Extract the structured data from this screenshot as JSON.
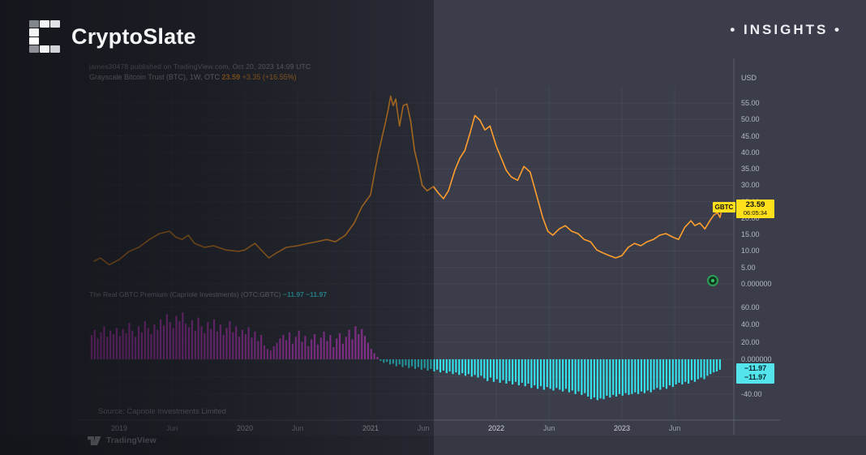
{
  "brand": {
    "name": "CryptoSlate",
    "tagline": "• INSIGHTS •"
  },
  "chart_header": {
    "attribution": "james30478 published on TradingView.com, Oct 20, 2023 14:09 UTC",
    "symbol_title": "Grayscale Bitcoin Trust (BTC), 1W, OTC",
    "last_price": "23.59",
    "change": "+3.35 (+16.55%)"
  },
  "price_scale": {
    "currency_label": "USD",
    "symbol_badge": "GBTC",
    "price_badge": "23.59",
    "countdown": "06:05:34"
  },
  "premium_pane": {
    "title": "The Real GBTC Premium (Capriole Investments) (OTC:GBTC)",
    "value_1": "−11.97",
    "value_2": "−11.97",
    "badge_line_1": "−11.97",
    "badge_line_2": "−11.97",
    "source": "Source: Capriole Investments Limited"
  },
  "footer": {
    "attribution": "TradingView"
  },
  "colors": {
    "background": "#3b3e4a",
    "price_line": "#ff9e2c",
    "premium_positive": "#d94be0",
    "premium_negative": "#35e2ec",
    "price_badge_bg": "#ffe01a",
    "premium_badge_bg": "#54e4ec",
    "axis_text": "#b6bac4"
  },
  "time_axis": {
    "ticks": [
      {
        "year": 2019.0,
        "label": "2019",
        "major": true
      },
      {
        "year": 2019.42,
        "label": "Jun",
        "major": false
      },
      {
        "year": 2020.0,
        "label": "2020",
        "major": true
      },
      {
        "year": 2020.42,
        "label": "Jun",
        "major": false
      },
      {
        "year": 2021.0,
        "label": "2021",
        "major": true
      },
      {
        "year": 2021.42,
        "label": "Jun",
        "major": false
      },
      {
        "year": 2022.0,
        "label": "2022",
        "major": true
      },
      {
        "year": 2022.42,
        "label": "Jun",
        "major": false
      },
      {
        "year": 2023.0,
        "label": "2023",
        "major": true
      },
      {
        "year": 2023.42,
        "label": "Jun",
        "major": false
      }
    ]
  },
  "chart_data": [
    {
      "type": "line",
      "title": "Grayscale Bitcoin Trust (BTC), 1W, OTC — price in USD",
      "color": "#ff9e2c",
      "ylim": [
        0,
        60
      ],
      "legend_position": "top-left",
      "grid": true,
      "y_ticks": [
        {
          "value": 55,
          "label": "55.00"
        },
        {
          "value": 50,
          "label": "50.00"
        },
        {
          "value": 45,
          "label": "45.00"
        },
        {
          "value": 40,
          "label": "40.00"
        },
        {
          "value": 35,
          "label": "35.00"
        },
        {
          "value": 30,
          "label": "30.00"
        },
        {
          "value": 25,
          "label": "25.00"
        },
        {
          "value": 20,
          "label": "20.00"
        },
        {
          "value": 15,
          "label": "15.00"
        },
        {
          "value": 10,
          "label": "10.00"
        },
        {
          "value": 5,
          "label": "5.00"
        },
        {
          "value": 0,
          "label": "0.000000"
        }
      ],
      "x": [
        2018.8,
        2018.85,
        2018.92,
        2019.0,
        2019.08,
        2019.16,
        2019.24,
        2019.32,
        2019.4,
        2019.45,
        2019.5,
        2019.55,
        2019.6,
        2019.68,
        2019.75,
        2019.85,
        2019.95,
        2020.0,
        2020.08,
        2020.19,
        2020.25,
        2020.33,
        2020.42,
        2020.5,
        2020.57,
        2020.65,
        2020.72,
        2020.8,
        2020.87,
        2020.93,
        2021.0,
        2021.03,
        2021.06,
        2021.09,
        2021.12,
        2021.14,
        2021.16,
        2021.18,
        2021.2,
        2021.23,
        2021.26,
        2021.29,
        2021.32,
        2021.35,
        2021.38,
        2021.41,
        2021.45,
        2021.5,
        2021.54,
        2021.58,
        2021.62,
        2021.67,
        2021.71,
        2021.75,
        2021.79,
        2021.83,
        2021.87,
        2021.91,
        2021.95,
        2022.0,
        2022.04,
        2022.08,
        2022.12,
        2022.17,
        2022.22,
        2022.27,
        2022.32,
        2022.37,
        2022.41,
        2022.45,
        2022.5,
        2022.55,
        2022.6,
        2022.65,
        2022.7,
        2022.75,
        2022.8,
        2022.85,
        2022.9,
        2022.95,
        2023.0,
        2023.05,
        2023.1,
        2023.15,
        2023.2,
        2023.25,
        2023.3,
        2023.35,
        2023.4,
        2023.45,
        2023.5,
        2023.55,
        2023.58,
        2023.62,
        2023.66,
        2023.7,
        2023.73,
        2023.76,
        2023.78,
        2023.8
      ],
      "values": [
        6.9,
        7.9,
        5.8,
        7.4,
        9.9,
        11.2,
        13.5,
        15.3,
        16.0,
        14.2,
        13.5,
        14.8,
        12.3,
        11.1,
        11.6,
        10.3,
        9.9,
        10.3,
        12.3,
        7.9,
        9.4,
        11.1,
        11.6,
        12.3,
        12.8,
        13.5,
        12.8,
        14.8,
        18.5,
        23.4,
        27.1,
        33.3,
        39.4,
        44.3,
        49.3,
        53.0,
        57.1,
        54.2,
        56.2,
        48.0,
        54.2,
        54.7,
        49.3,
        40.6,
        35.7,
        30.0,
        28.3,
        29.6,
        27.6,
        25.9,
        28.3,
        34.5,
        38.2,
        40.6,
        45.6,
        51.2,
        49.8,
        46.8,
        48.0,
        41.9,
        38.2,
        34.5,
        32.5,
        31.5,
        35.7,
        34.0,
        27.1,
        20.2,
        16.0,
        14.8,
        16.7,
        17.7,
        16.0,
        15.3,
        13.5,
        12.8,
        10.3,
        9.4,
        8.6,
        7.9,
        8.6,
        11.1,
        12.3,
        11.6,
        12.8,
        13.5,
        14.8,
        15.3,
        14.3,
        13.5,
        17.2,
        19.2,
        17.7,
        18.5,
        16.7,
        19.2,
        20.9,
        21.7,
        20.2,
        23.59
      ],
      "last_value": 23.59
    },
    {
      "type": "bar",
      "title": "The Real GBTC Premium (Capriole Investments) %",
      "color_positive": "#d94be0",
      "color_negative": "#35e2ec",
      "ylim": [
        -50,
        65
      ],
      "grid": true,
      "y_ticks": [
        {
          "value": 60,
          "label": "60.00"
        },
        {
          "value": 40,
          "label": "40.00"
        },
        {
          "value": 20,
          "label": "20.00"
        },
        {
          "value": 0,
          "label": "0.000000"
        },
        {
          "value": -20,
          "label": "-20.00"
        },
        {
          "value": -40,
          "label": "-40.00"
        }
      ],
      "x_start": 2018.78,
      "x_step": 0.025,
      "values": [
        28,
        34,
        24,
        31,
        38,
        26,
        33,
        29,
        36,
        27,
        35,
        30,
        42,
        33,
        26,
        38,
        31,
        44,
        36,
        29,
        40,
        34,
        46,
        39,
        52,
        43,
        36,
        50,
        44,
        54,
        41,
        37,
        45,
        33,
        48,
        38,
        30,
        43,
        35,
        46,
        32,
        40,
        28,
        36,
        44,
        31,
        38,
        26,
        34,
        29,
        37,
        25,
        32,
        21,
        28,
        16,
        12,
        10,
        15,
        19,
        24,
        28,
        22,
        31,
        18,
        26,
        33,
        20,
        27,
        15,
        23,
        29,
        17,
        25,
        32,
        21,
        28,
        14,
        24,
        30,
        18,
        26,
        34,
        23,
        38,
        29,
        35,
        27,
        19,
        12,
        7,
        3,
        -2,
        -4,
        -3,
        -6,
        -5,
        -8,
        -6,
        -9,
        -7,
        -10,
        -8,
        -11,
        -9,
        -12,
        -10,
        -13,
        -11,
        -14,
        -12,
        -15,
        -13,
        -16,
        -14,
        -17,
        -15,
        -18,
        -16,
        -19,
        -17,
        -20,
        -18,
        -21,
        -19,
        -22,
        -25,
        -21,
        -26,
        -23,
        -27,
        -24,
        -28,
        -25,
        -29,
        -26,
        -30,
        -27,
        -31,
        -28,
        -33,
        -30,
        -34,
        -31,
        -35,
        -32,
        -34,
        -36,
        -33,
        -35,
        -37,
        -34,
        -38,
        -36,
        -40,
        -37,
        -41,
        -39,
        -43,
        -46,
        -44,
        -47,
        -45,
        -46,
        -42,
        -44,
        -41,
        -43,
        -40,
        -42,
        -39,
        -41,
        -40,
        -38,
        -40,
        -37,
        -39,
        -36,
        -38,
        -35,
        -33,
        -35,
        -32,
        -34,
        -30,
        -32,
        -29,
        -27,
        -29,
        -26,
        -28,
        -24,
        -26,
        -23,
        -21,
        -23,
        -19,
        -17,
        -15,
        -14,
        -12
      ],
      "last_value": -11.97
    }
  ]
}
